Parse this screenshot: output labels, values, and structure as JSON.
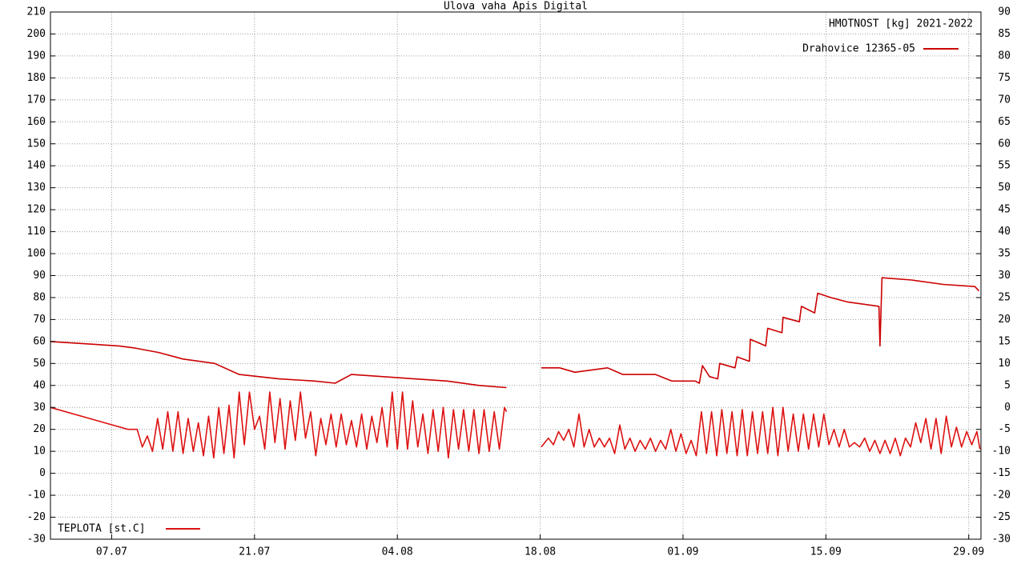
{
  "chart_data": {
    "type": "line",
    "title": "Ulova vaha Apis Digital",
    "y_label": "HMOTNOST [kg] 2021-2022",
    "xlim": [
      0,
      91.2
    ],
    "xticks": [
      {
        "value": 6,
        "label": "07.07"
      },
      {
        "value": 20,
        "label": "21.07"
      },
      {
        "value": 34,
        "label": "04.08"
      },
      {
        "value": 48,
        "label": "18.08"
      },
      {
        "value": 62,
        "label": "01.09"
      },
      {
        "value": 76,
        "label": "15.09"
      },
      {
        "value": 90,
        "label": "29.09"
      }
    ],
    "ylim": [
      -30,
      210
    ],
    "yticks": [
      -30,
      -20,
      -10,
      0,
      10,
      20,
      30,
      40,
      50,
      60,
      70,
      80,
      90,
      100,
      110,
      120,
      130,
      140,
      150,
      160,
      170,
      180,
      190,
      200,
      210
    ],
    "y2lim": [
      -30,
      90
    ],
    "y2ticks": [
      -30,
      -25,
      -20,
      -15,
      -10,
      -5,
      0,
      5,
      10,
      15,
      20,
      25,
      30,
      35,
      40,
      45,
      50,
      55,
      60,
      65,
      70,
      75,
      80,
      85,
      90
    ],
    "grid": true,
    "series": [
      {
        "name": "Drahovice 12365-05",
        "color": "#cc0000",
        "legend": "upper right",
        "x": [
          0,
          6.7,
          8.3,
          10.6,
          13,
          16.1,
          18.5,
          22.4,
          25.9,
          27.9,
          29.5,
          32.6,
          35.7,
          38.9,
          42,
          44.7,
          46,
          48.1,
          49.9,
          51.4,
          54.6,
          56.1,
          59.3,
          60.9,
          63.2,
          63.6,
          63.9,
          64.6,
          65.4,
          65.6,
          67.1,
          67.3,
          68.5,
          68.6,
          70.1,
          70.3,
          71.7,
          71.8,
          73.4,
          73.6,
          74.9,
          75.2,
          76.5,
          78.1,
          81.2,
          81.3,
          81.5,
          84.4,
          87.5,
          90.6,
          91
        ],
        "values": [
          60,
          58,
          57,
          55,
          52,
          50,
          45,
          43,
          42,
          41,
          45,
          44,
          43,
          42,
          40,
          39,
          null,
          48,
          48,
          46,
          48,
          45,
          45,
          42,
          42,
          41,
          49,
          44,
          43,
          50,
          48,
          53,
          51,
          61,
          58,
          66,
          64,
          71,
          69,
          76,
          73,
          82,
          80,
          78,
          76,
          58,
          89,
          88,
          86,
          85,
          83
        ]
      },
      {
        "name": "TEPLOTA [st.C]",
        "color": "#dd1111",
        "legend": "lower left",
        "x": [
          0,
          7.6,
          8.5,
          9,
          9.5,
          10,
          10.5,
          11,
          11.5,
          12,
          12.5,
          13,
          13.5,
          14,
          14.5,
          15,
          15.5,
          16,
          16.5,
          17,
          17.5,
          18,
          18.5,
          19,
          19.5,
          20,
          20.5,
          21,
          21.5,
          22,
          22.5,
          23,
          23.5,
          24,
          24.5,
          25,
          25.5,
          26,
          26.5,
          27,
          27.5,
          28,
          28.5,
          29,
          29.5,
          30,
          30.5,
          31,
          31.5,
          32,
          32.5,
          33,
          33.5,
          34,
          34.5,
          35,
          35.5,
          36,
          36.5,
          37,
          37.5,
          38,
          38.5,
          39,
          39.5,
          40,
          40.5,
          41,
          41.5,
          42,
          42.5,
          43,
          43.5,
          44,
          44.5,
          44.7,
          46,
          48.1,
          48.8,
          49.3,
          49.8,
          50.3,
          50.8,
          51.3,
          51.8,
          52.3,
          52.8,
          53.3,
          53.8,
          54.3,
          54.8,
          55.3,
          55.8,
          56.3,
          56.8,
          57.3,
          57.8,
          58.3,
          58.8,
          59.3,
          59.8,
          60.3,
          60.8,
          61.3,
          61.8,
          62.3,
          62.8,
          63.3,
          63.8,
          64.3,
          64.8,
          65.3,
          65.8,
          66.3,
          66.8,
          67.3,
          67.8,
          68.3,
          68.8,
          69.3,
          69.8,
          70.3,
          70.8,
          71.3,
          71.8,
          72.3,
          72.8,
          73.3,
          73.8,
          74.3,
          74.8,
          75.3,
          75.8,
          76.3,
          76.8,
          77.3,
          77.8,
          78.3,
          78.8,
          79.3,
          79.8,
          80.3,
          80.8,
          81.3,
          81.8,
          82.3,
          82.8,
          83.3,
          83.8,
          84.3,
          84.8,
          85.3,
          85.8,
          86.3,
          86.8,
          87.3,
          87.8,
          88.3,
          88.8,
          89.3,
          89.8,
          90.3,
          90.8,
          91.1
        ],
        "values": [
          30,
          20,
          20,
          12,
          17,
          10,
          25,
          11,
          28,
          10,
          28,
          9,
          25,
          10,
          23,
          8,
          26,
          7,
          30,
          9,
          31,
          7,
          37,
          13,
          37,
          20,
          26,
          11,
          37,
          14,
          34,
          11,
          33,
          15,
          37,
          16,
          28,
          8,
          25,
          13,
          27,
          12,
          27,
          13,
          24,
          12,
          27,
          11,
          26,
          14,
          30,
          12,
          37,
          11,
          37,
          11,
          33,
          12,
          27,
          9,
          29,
          10,
          30,
          7,
          29,
          11,
          29,
          10,
          29,
          9,
          29,
          10,
          28,
          11,
          30,
          28,
          null,
          12,
          16,
          13,
          19,
          15,
          20,
          12,
          27,
          12,
          20,
          12,
          16,
          12,
          16,
          9,
          22,
          11,
          16,
          10,
          15,
          11,
          16,
          10,
          15,
          11,
          20,
          10,
          18,
          9,
          15,
          8,
          28,
          9,
          28,
          8,
          29,
          9,
          28,
          8,
          29,
          8,
          28,
          9,
          28,
          9,
          30,
          8,
          30,
          10,
          27,
          10,
          27,
          11,
          27,
          12,
          27,
          13,
          20,
          12,
          20,
          12,
          14,
          12,
          16,
          10,
          15,
          9,
          15,
          9,
          16,
          8,
          16,
          12,
          23,
          14,
          25,
          11,
          25,
          9,
          26,
          12,
          21,
          12,
          19,
          13,
          19,
          11
        ]
      }
    ]
  }
}
